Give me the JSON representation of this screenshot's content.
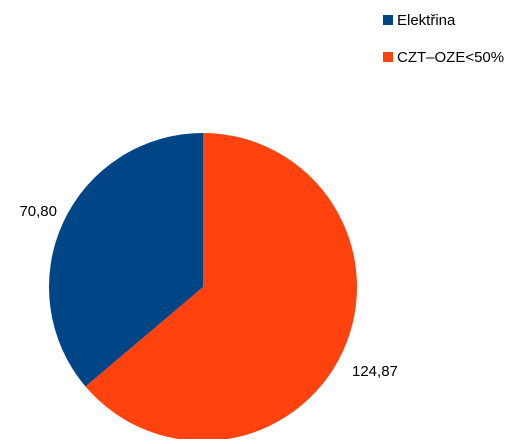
{
  "chart_data": {
    "type": "pie",
    "start_angle_deg": 0,
    "direction": "clockwise",
    "slices": [
      {
        "label": "CZT–OZE<50%",
        "value": 124.87,
        "display": "124,87",
        "color": "#ff420e"
      },
      {
        "label": "Elektřina",
        "value": 70.8,
        "display": "70,80",
        "color": "#004586"
      }
    ],
    "legend": {
      "placement": "top-right",
      "items": [
        {
          "label": "Elektřina",
          "color": "#004586"
        },
        {
          "label": "CZT–OZE<50%",
          "color": "#ff420e"
        }
      ]
    }
  }
}
